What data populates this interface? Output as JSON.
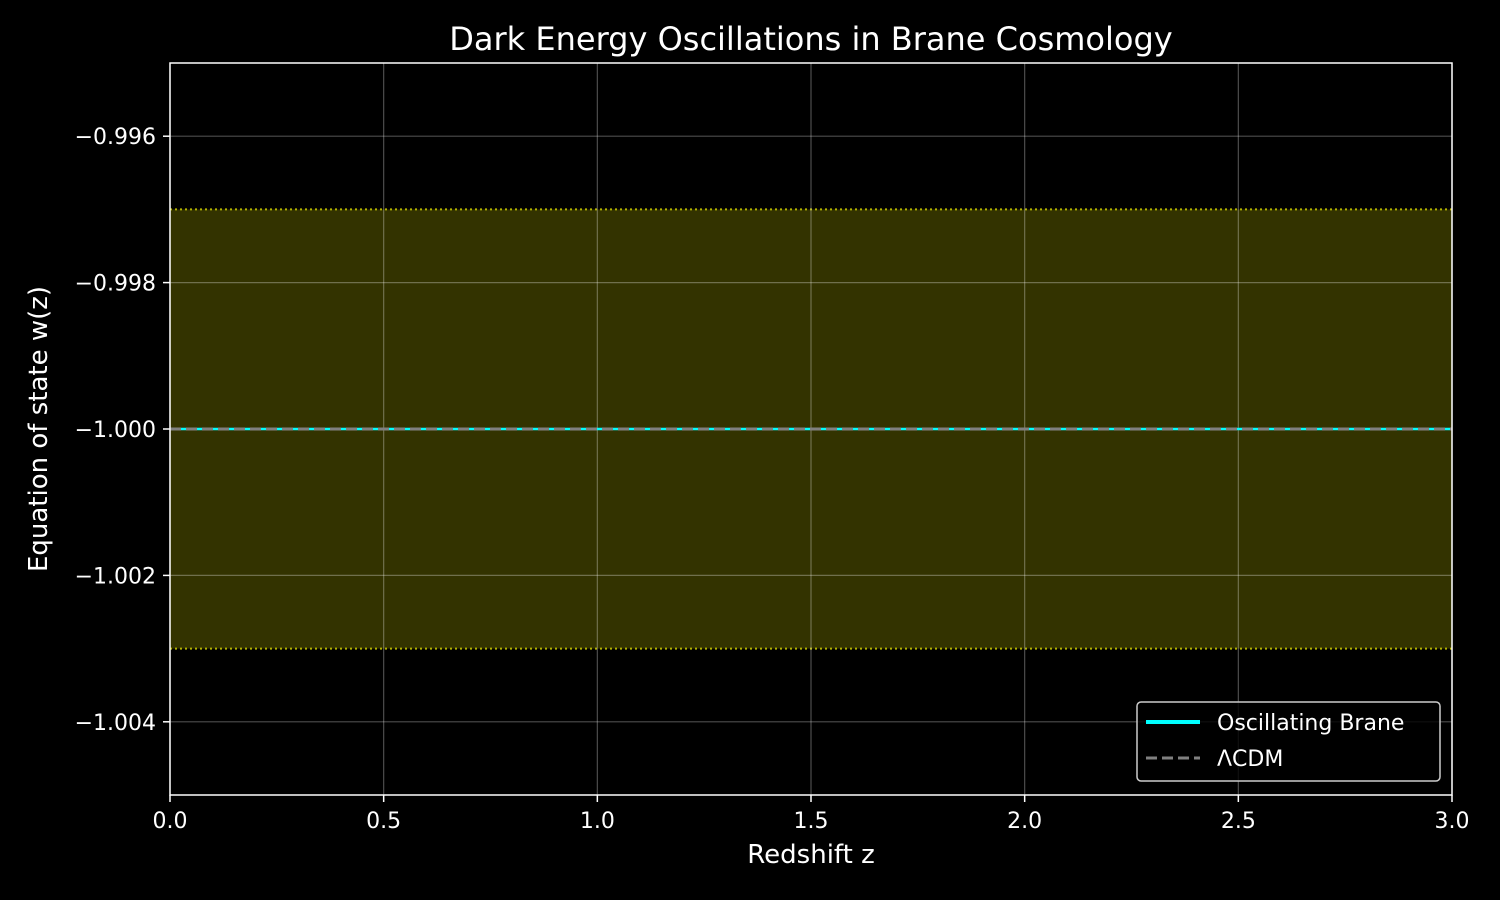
{
  "chart_data": {
    "type": "line",
    "title": "Dark Energy Oscillations in Brane Cosmology",
    "xlabel": "Redshift z",
    "ylabel": "Equation of state w(z)",
    "xlim": [
      0.0,
      3.0
    ],
    "ylim": [
      -1.005,
      -0.995
    ],
    "x_ticks": [
      0.0,
      0.5,
      1.0,
      1.5,
      2.0,
      2.5,
      3.0
    ],
    "x_tick_labels": [
      "0.0",
      "0.5",
      "1.0",
      "1.5",
      "2.0",
      "2.5",
      "3.0"
    ],
    "y_ticks": [
      -0.996,
      -0.998,
      -1.0,
      -1.002,
      -1.004
    ],
    "y_tick_labels": [
      "−0.996",
      "−0.998",
      "−1.000",
      "−1.002",
      "−1.004"
    ],
    "grid": true,
    "legend_position": "lower-right",
    "series": [
      {
        "name": "Oscillating Brane",
        "style": "solid",
        "color": "#00ffff",
        "x": [
          0.0,
          3.0
        ],
        "y": [
          -1.0,
          -1.0
        ]
      },
      {
        "name": "ΛCDM",
        "style": "dashed",
        "color": "#808080",
        "x": [
          0.0,
          3.0
        ],
        "y": [
          -1.0,
          -1.0
        ]
      }
    ],
    "band": {
      "lower": -1.003,
      "upper": -0.997,
      "fill_color": "#333300",
      "edge_color": "#b3b300",
      "edge_style": "dotted"
    },
    "colors": {
      "background": "#000000",
      "axes": "#ffffff",
      "grid": "#ffffff",
      "text": "#ffffff"
    }
  }
}
